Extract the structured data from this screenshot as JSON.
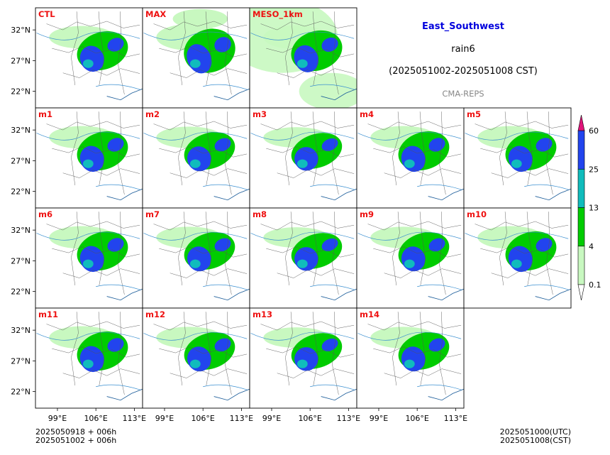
{
  "header": {
    "region": "East_Southwest",
    "variable": "rain6",
    "period": "(2025051002-2025051008 CST)",
    "model": "CMA-REPS"
  },
  "footer": {
    "init_utc": "2025050918  +  006h",
    "init_cst": "2025051002  +  006h",
    "valid_utc": "2025051000(UTC)",
    "valid_cst": "2025051008(CST)"
  },
  "colors": {
    "panel_label": "#ee1111",
    "levels": [
      "#ffffff",
      "#c8f8c0",
      "#00cc00",
      "#10bcbc",
      "#2244ee",
      "#e0147a"
    ],
    "river": "#3a8fd0"
  },
  "chart_data": {
    "type": "heatmap",
    "panels": [
      {
        "label": "CTL",
        "peak": 1.0
      },
      {
        "label": "MAX",
        "peak": 1.15
      },
      {
        "label": "MESO_1km",
        "peak": 1.05
      },
      {
        "label": "m1",
        "peak": 1.0
      },
      {
        "label": "m2",
        "peak": 0.95
      },
      {
        "label": "m3",
        "peak": 0.9
      },
      {
        "label": "m4",
        "peak": 1.0
      },
      {
        "label": "m5",
        "peak": 1.0
      },
      {
        "label": "m6",
        "peak": 1.0
      },
      {
        "label": "m7",
        "peak": 0.95
      },
      {
        "label": "m8",
        "peak": 0.9
      },
      {
        "label": "m9",
        "peak": 0.95
      },
      {
        "label": "m10",
        "peak": 1.0
      },
      {
        "label": "m11",
        "peak": 1.0
      },
      {
        "label": "m12",
        "peak": 0.95
      },
      {
        "label": "m13",
        "peak": 0.9
      },
      {
        "label": "m14",
        "peak": 0.95
      }
    ],
    "x_ticks": [
      "99°E",
      "106°E",
      "113°E"
    ],
    "y_ticks": [
      "32°N",
      "27°N",
      "22°N"
    ],
    "colorbar": {
      "levels": [
        0.1,
        4,
        13,
        25,
        60
      ],
      "labels": [
        "0.1",
        "4",
        "13",
        "25",
        "60"
      ]
    }
  }
}
